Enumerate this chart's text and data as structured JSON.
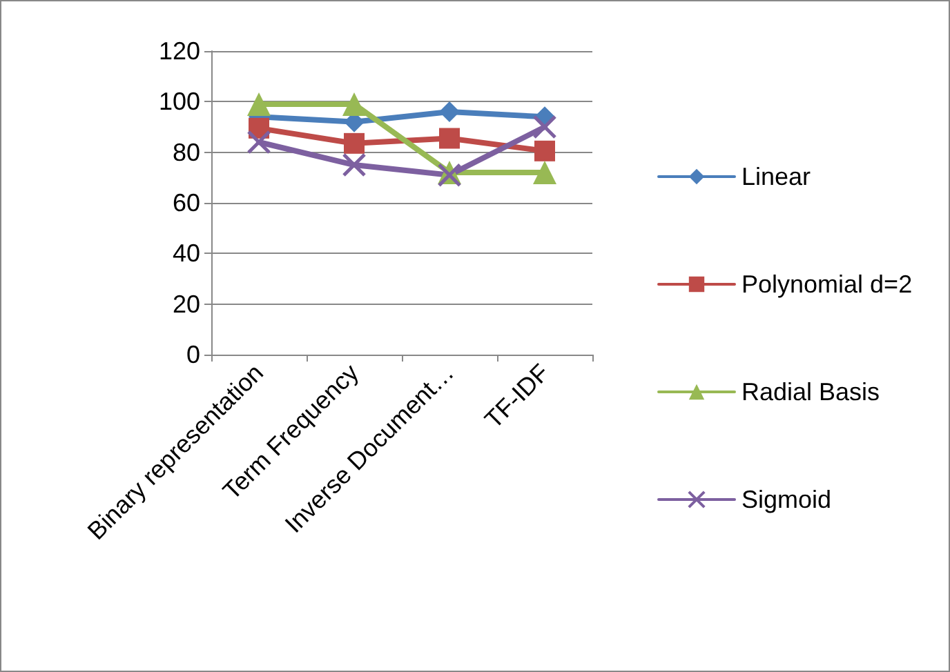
{
  "chart_data": {
    "type": "line",
    "categories": [
      "Binary representation",
      "Term Frequency",
      "Inverse Document…",
      "TF-IDF"
    ],
    "series": [
      {
        "name": "Linear",
        "color": "#4a7ebb",
        "marker": "diamond",
        "values": [
          94,
          92,
          96,
          94
        ]
      },
      {
        "name": "Polynomial d=2",
        "color": "#be4b48",
        "marker": "square",
        "values": [
          89.5,
          83.5,
          85.5,
          80.5
        ]
      },
      {
        "name": "Radial Basis",
        "color": "#98b954",
        "marker": "triangle",
        "values": [
          99,
          99,
          72,
          72
        ]
      },
      {
        "name": "Sigmoid",
        "color": "#7d60a0",
        "marker": "cross",
        "values": [
          84,
          75,
          71,
          90
        ]
      }
    ],
    "ylim": [
      0,
      120
    ],
    "yticks": [
      0,
      20,
      40,
      60,
      80,
      100,
      120
    ],
    "grid": "y",
    "legend": "right",
    "line_style": "solid"
  }
}
